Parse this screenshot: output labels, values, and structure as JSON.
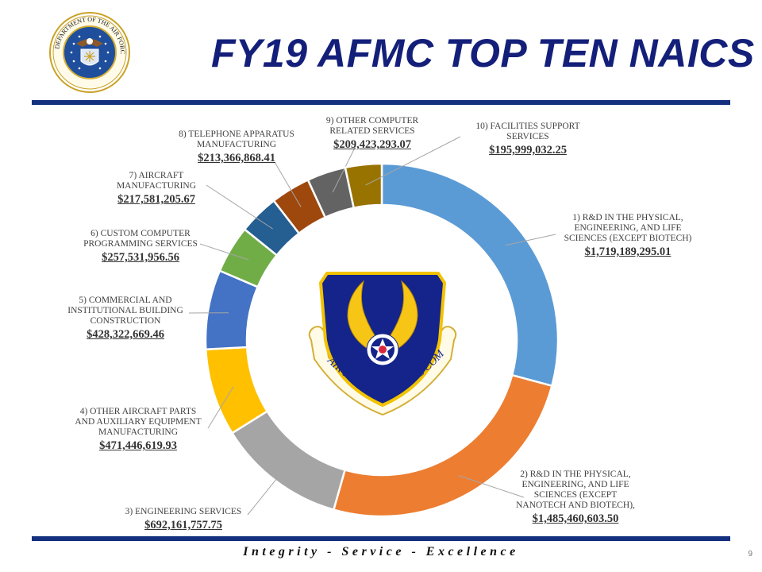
{
  "slide": {
    "title": "FY19 AFMC TOP TEN NAICS",
    "footer": "Integrity - Service - Excellence",
    "page_number": "9",
    "colors": {
      "title": "#141f7a",
      "rule": "#14307e"
    }
  },
  "logos": {
    "seal_text": "DEPARTMENT OF THE AIR FORCE · UNITED STATES OF AMERICA",
    "emblem_text": "AIR FORCE MATERIEL COMMAND"
  },
  "chart_data": {
    "type": "pie",
    "variant": "donut",
    "title": "FY19 AFMC TOP TEN NAICS",
    "legend": "none (data labels with leader lines)",
    "categories": [
      "1) R&D IN THE PHYSICAL, ENGINEERING, AND LIFE SCIENCES (EXCEPT BIOTECH)",
      "2) R&D IN THE PHYSICAL, ENGINEERING, AND LIFE SCIENCES (EXCEPT NANOTECH AND BIOTECH),",
      "3) ENGINEERING SERVICES",
      "4) OTHER AIRCRAFT PARTS AND AUXILIARY EQUIPMENT MANUFACTURING",
      "5) COMMERCIAL AND INSTITUTIONAL BUILDING CONSTRUCTION",
      "6) CUSTOM COMPUTER PROGRAMMING SERVICES",
      "7) AIRCRAFT MANUFACTURING",
      "8) TELEPHONE APPARATUS MANUFACTURING",
      "9) OTHER COMPUTER RELATED SERVICES",
      "10) FACILITIES SUPPORT SERVICES"
    ],
    "values": [
      1719189295.01,
      1485460603.5,
      692161757.75,
      471446619.93,
      428322669.46,
      257531956.56,
      217581205.67,
      213366868.41,
      209423293.07,
      195999032.25
    ],
    "value_labels": [
      "$1,719,189,295.01",
      "$1,485,460,603.50",
      "$692,161,757.75",
      "$471,446,619.93",
      "$428,322,669.46",
      "$257,531,956.56",
      "$217,581,205.67",
      "$213,366,868.41",
      "$209,423,293.07",
      "$195,999,032.25"
    ],
    "colors": [
      "#5b9bd5",
      "#ed7d31",
      "#a5a5a5",
      "#ffc000",
      "#4472c4",
      "#70ad47",
      "#255e91",
      "#9e480e",
      "#636363",
      "#997300"
    ]
  },
  "labels": [
    {
      "lines": [
        "1) R&D IN THE PHYSICAL,",
        "ENGINEERING, AND LIFE",
        "SCIENCES  (EXCEPT BIOTECH)"
      ],
      "value": "$1,719,189,295.01"
    },
    {
      "lines": [
        "2) R&D IN THE PHYSICAL,",
        "ENGINEERING, AND LIFE",
        "SCIENCES  (EXCEPT",
        "NANOTECH AND BIOTECH),"
      ],
      "value": "$1,485,460,603.50"
    },
    {
      "lines": [
        "3) ENGINEERING SERVICES"
      ],
      "value": "$692,161,757.75"
    },
    {
      "lines": [
        "4) OTHER AIRCRAFT PARTS",
        "AND AUXILIARY EQUIPMENT",
        "MANUFACTURING"
      ],
      "value": "$471,446,619.93"
    },
    {
      "lines": [
        "5) COMMERCIAL AND",
        "INSTITUTIONAL BUILDING",
        "CONSTRUCTION"
      ],
      "value": "$428,322,669.46"
    },
    {
      "lines": [
        "6) CUSTOM COMPUTER",
        "PROGRAMMING SERVICES"
      ],
      "value": "$257,531,956.56"
    },
    {
      "lines": [
        "7) AIRCRAFT",
        "MANUFACTURING"
      ],
      "value": "$217,581,205.67"
    },
    {
      "lines": [
        "8) TELEPHONE APPARATUS",
        "MANUFACTURING"
      ],
      "value": "$213,366,868.41"
    },
    {
      "lines": [
        "9) OTHER COMPUTER",
        "RELATED SERVICES"
      ],
      "value": "$209,423,293.07"
    },
    {
      "lines": [
        "10) FACILITIES SUPPORT",
        "SERVICES"
      ],
      "value": "$195,999,032.25"
    }
  ]
}
